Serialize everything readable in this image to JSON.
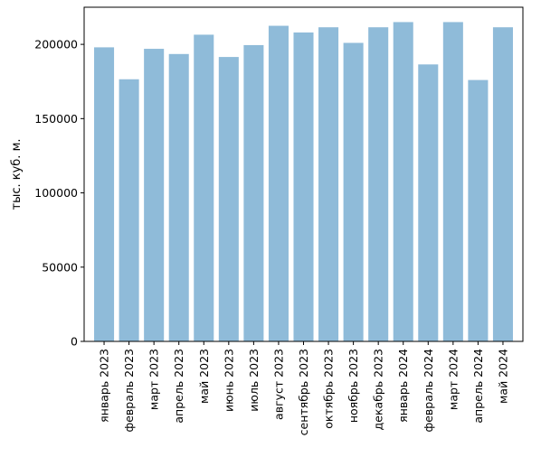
{
  "chart_data": {
    "type": "bar",
    "ylabel": "тыс. куб. м.",
    "ylim": [
      0,
      225000
    ],
    "yticks": [
      0,
      50000,
      100000,
      150000,
      200000
    ],
    "grid": false,
    "bar_color": "#8fbbd9",
    "categories": [
      "январь 2023",
      "февраль 2023",
      "март 2023",
      "апрель 2023",
      "май 2023",
      "июнь 2023",
      "июль 2023",
      "август 2023",
      "сентябрь 2023",
      "октябрь 2023",
      "ноябрь 2023",
      "декабрь 2023",
      "январь 2024",
      "февраль 2024",
      "март 2024",
      "апрель 2024",
      "май 2024"
    ],
    "values": [
      198000,
      176500,
      197000,
      193500,
      206500,
      191500,
      199500,
      212500,
      208000,
      211500,
      201000,
      211500,
      215000,
      186500,
      215000,
      176000,
      211500
    ]
  }
}
